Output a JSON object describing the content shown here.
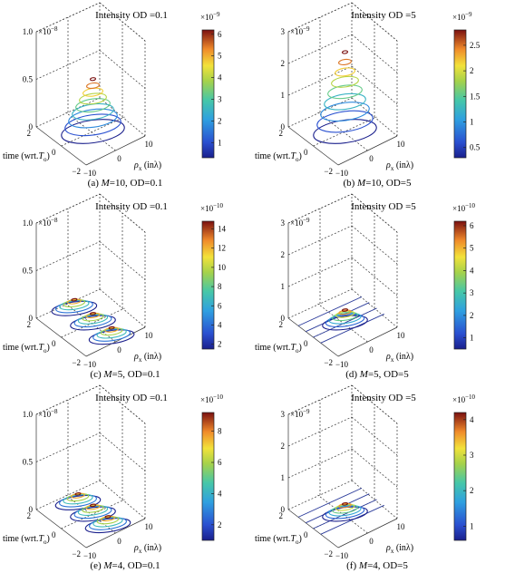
{
  "chart_data": [
    {
      "type": "contour3d",
      "title": "Intensity OD =0.1",
      "caption_letter": "(a) ",
      "caption_math": "M",
      "caption_rest": "=10, OD=0.1",
      "z_exponent_label": "×10",
      "z_exponent": "−8",
      "z_ticks": [
        "0",
        "0.5",
        "1.0"
      ],
      "y_ticks": [
        "−2",
        "0",
        "2"
      ],
      "x_ticks": [
        "−10",
        "0",
        "10"
      ],
      "ylabel": "time (wrt.",
      "ylabel_sym": "T",
      "ylabel_sub": "o",
      "xlabel_sym": "ρ",
      "xlabel_sub": "x",
      "xlabel_unit": " (inλ)",
      "colorbar_exponent_label": "×10",
      "colorbar_exponent": "−9",
      "colorbar_range": [
        0.3,
        6.2
      ],
      "colorbar_ticks": [
        "1",
        "2",
        "3",
        "4",
        "5",
        "6"
      ],
      "colorbar_values": [
        1,
        2,
        3,
        4,
        5,
        6
      ],
      "peaks": [
        {
          "time": 0,
          "x": 0,
          "height": 0.55
        }
      ],
      "peak_shape": "cone",
      "contour_levels": 9
    },
    {
      "type": "contour3d",
      "title": "Intensity OD =5",
      "caption_letter": "(b) ",
      "caption_math": "M",
      "caption_rest": "=10, OD=5",
      "z_exponent_label": "×10",
      "z_exponent": "−9",
      "z_ticks": [
        "0",
        "1",
        "2",
        "3"
      ],
      "y_ticks": [
        "−2",
        "0",
        "2"
      ],
      "x_ticks": [
        "−10",
        "0",
        "10"
      ],
      "ylabel": "time (wrt.",
      "ylabel_sym": "T",
      "ylabel_sub": "o",
      "xlabel_sym": "ρ",
      "xlabel_sub": "x",
      "xlabel_unit": " (inλ)",
      "colorbar_exponent_label": "×10",
      "colorbar_exponent": "−9",
      "colorbar_range": [
        0.3,
        2.8
      ],
      "colorbar_ticks": [
        "0.5",
        "1",
        "1.5",
        "2",
        "2.5"
      ],
      "colorbar_values": [
        0.5,
        1,
        1.5,
        2,
        2.5
      ],
      "peaks": [
        {
          "time": 0,
          "x": 0,
          "height": 2.5
        }
      ],
      "peak_shape": "cone",
      "contour_levels": 9
    },
    {
      "type": "contour3d",
      "title": "Intensity OD =0.1",
      "caption_letter": "(c) ",
      "caption_math": "M",
      "caption_rest": "=5, OD=0.1",
      "z_exponent_label": "×10",
      "z_exponent": "−8",
      "z_ticks": [
        "0",
        "0.5",
        "1.0"
      ],
      "y_ticks": [
        "−2",
        "0",
        "2"
      ],
      "x_ticks": [
        "−10",
        "0",
        "10"
      ],
      "ylabel": "time (wrt.",
      "ylabel_sym": "T",
      "ylabel_sub": "o",
      "xlabel_sym": "ρ",
      "xlabel_sub": "x",
      "xlabel_unit": " (inλ)",
      "colorbar_exponent_label": "×10",
      "colorbar_exponent": "−10",
      "colorbar_range": [
        1.5,
        14.8
      ],
      "colorbar_ticks": [
        "2",
        "4",
        "6",
        "8",
        "10",
        "12",
        "14"
      ],
      "colorbar_values": [
        2,
        4,
        6,
        8,
        10,
        12,
        14
      ],
      "peaks": [
        {
          "time": 1.5,
          "x": 0,
          "height": 0.1
        },
        {
          "time": 0,
          "x": 0,
          "height": 0.12
        },
        {
          "time": -1.5,
          "x": 0,
          "height": 0.12
        }
      ],
      "peak_shape": "flat",
      "contour_levels": 6
    },
    {
      "type": "contour3d",
      "title": "Intensity OD =5",
      "caption_letter": "(d) ",
      "caption_math": "M",
      "caption_rest": "=5, OD=5",
      "z_exponent_label": "×10",
      "z_exponent": "−9",
      "z_ticks": [
        "0",
        "1",
        "2",
        "3"
      ],
      "y_ticks": [
        "−2",
        "0",
        "2"
      ],
      "x_ticks": [
        "−10",
        "0",
        "10"
      ],
      "ylabel": "time (wrt.",
      "ylabel_sym": "T",
      "ylabel_sub": "o",
      "xlabel_sym": "ρ",
      "xlabel_sub": "x",
      "xlabel_unit": " (inλ)",
      "colorbar_exponent_label": "×10",
      "colorbar_exponent": "−10",
      "colorbar_range": [
        0.5,
        6.2
      ],
      "colorbar_ticks": [
        "1",
        "2",
        "3",
        "4",
        "5",
        "6"
      ],
      "colorbar_values": [
        1,
        2,
        3,
        4,
        5,
        6
      ],
      "peaks": [
        {
          "time": 0,
          "x": 0,
          "height": 0.5
        }
      ],
      "peak_shape": "flat",
      "contour_levels": 7,
      "lines": true
    },
    {
      "type": "contour3d",
      "title": "Intensity OD =0.1",
      "caption_letter": "(e) ",
      "caption_math": "M",
      "caption_rest": "=4, OD=0.1",
      "z_exponent_label": "×10",
      "z_exponent": "−8",
      "z_ticks": [
        "0",
        "0.5",
        "1.0"
      ],
      "y_ticks": [
        "−2",
        "0",
        "2"
      ],
      "x_ticks": [
        "−10",
        "0",
        "10"
      ],
      "ylabel": "time (wrt.",
      "ylabel_sym": "T",
      "ylabel_sub": "o",
      "xlabel_sym": "ρ",
      "xlabel_sub": "x",
      "xlabel_unit": " (inλ)",
      "colorbar_exponent_label": "×10",
      "colorbar_exponent": "−10",
      "colorbar_range": [
        1.0,
        9.2
      ],
      "colorbar_ticks": [
        "2",
        "4",
        "6",
        "8"
      ],
      "colorbar_values": [
        2,
        4,
        6,
        8
      ],
      "peaks": [
        {
          "time": 1.2,
          "x": 0,
          "height": 0.08
        },
        {
          "time": 0,
          "x": 0,
          "height": 0.09
        },
        {
          "time": -1.2,
          "x": 0,
          "height": 0.08
        }
      ],
      "peak_shape": "flat",
      "contour_levels": 6
    },
    {
      "type": "contour3d",
      "title": "Intensity OD =5",
      "caption_letter": "(f) ",
      "caption_math": "M",
      "caption_rest": "=4, OD=5",
      "z_exponent_label": "×10",
      "z_exponent": "−9",
      "z_ticks": [
        "0",
        "1",
        "2",
        "3"
      ],
      "y_ticks": [
        "−2",
        "0",
        "2"
      ],
      "x_ticks": [
        "−10",
        "0",
        "10"
      ],
      "ylabel": "time (wrt.",
      "ylabel_sym": "T",
      "ylabel_sub": "o",
      "xlabel_sym": "ρ",
      "xlabel_sub": "x",
      "xlabel_unit": " (inλ)",
      "colorbar_exponent_label": "×10",
      "colorbar_exponent": "−10",
      "colorbar_range": [
        0.6,
        4.2
      ],
      "colorbar_ticks": [
        "1",
        "2",
        "3",
        "4"
      ],
      "colorbar_values": [
        1,
        2,
        3,
        4
      ],
      "peaks": [
        {
          "time": 0,
          "x": 0,
          "height": 0.4
        }
      ],
      "peak_shape": "flat",
      "contour_levels": 7,
      "lines": true
    }
  ]
}
